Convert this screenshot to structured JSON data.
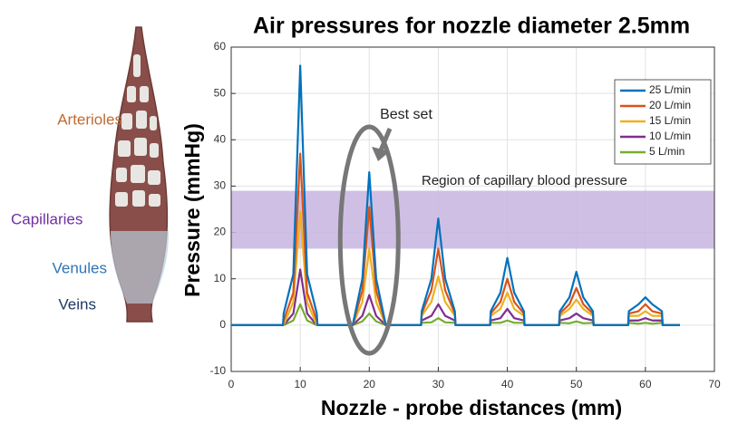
{
  "chart_data": {
    "type": "line",
    "title": "Air pressures for nozzle diameter 2.5mm",
    "xlabel": "Nozzle - probe distances (mm)",
    "ylabel": "Pressure (mmHg)",
    "x": [
      0,
      7.5,
      7.6,
      9,
      10,
      11,
      12.4,
      12.5,
      17.5,
      17.6,
      19,
      20,
      21,
      22.4,
      22.5,
      27.5,
      27.6,
      29,
      30,
      31,
      32.4,
      32.5,
      37.5,
      37.6,
      39,
      40,
      41,
      42.4,
      42.5,
      47.5,
      47.6,
      49,
      50,
      51,
      52.4,
      52.5,
      57.5,
      57.6,
      59,
      60,
      61,
      62.4,
      62.5,
      65
    ],
    "series": [
      {
        "name": "25 L/min",
        "color": "#0072bd",
        "values": [
          0,
          0,
          2.5,
          11,
          56,
          11,
          2.5,
          0,
          0,
          0,
          10,
          33,
          10,
          0,
          0,
          0,
          3,
          10,
          23,
          10,
          3,
          0,
          0,
          3,
          7,
          14.5,
          7,
          3,
          0,
          0,
          3,
          6,
          11.5,
          6,
          3,
          0,
          0,
          3,
          4.5,
          6,
          4.5,
          3,
          0,
          0
        ]
      },
      {
        "name": "20 L/min",
        "color": "#d95319",
        "values": [
          0,
          0,
          1,
          7,
          37,
          7,
          1,
          0,
          0,
          0,
          7.5,
          25.5,
          7.5,
          0,
          0,
          0,
          2.5,
          7.5,
          16.5,
          7.5,
          2.5,
          0,
          0,
          2.5,
          5,
          10,
          5,
          2.5,
          0,
          0,
          2.5,
          4.5,
          8,
          4.5,
          2.5,
          0,
          0,
          2.5,
          3,
          4.5,
          3,
          2.5,
          0,
          0
        ]
      },
      {
        "name": "15 L/min",
        "color": "#edb120",
        "values": [
          0,
          0,
          0,
          5,
          24.5,
          5,
          0,
          0,
          0,
          0,
          5,
          16.5,
          5,
          0,
          0,
          0,
          2,
          5,
          10.5,
          5,
          2,
          0,
          0,
          2,
          3.5,
          7,
          3.5,
          2,
          0,
          0,
          2,
          3.5,
          5.5,
          3.5,
          2,
          0,
          0,
          2,
          2,
          3,
          2,
          2,
          0,
          0
        ]
      },
      {
        "name": "10 L/min",
        "color": "#7e2f8e",
        "values": [
          0,
          0,
          0,
          2.5,
          12,
          2.5,
          0,
          0,
          0,
          0,
          2,
          6.5,
          2,
          0,
          0,
          0,
          1,
          2,
          4.5,
          2,
          1,
          0,
          0,
          1,
          1.5,
          3.5,
          1.5,
          1,
          0,
          0,
          1,
          1.5,
          2.5,
          1.5,
          1,
          0,
          0,
          1,
          1,
          1.5,
          1,
          1,
          0,
          0
        ]
      },
      {
        "name": "5 L/min",
        "color": "#77ac30",
        "values": [
          0,
          0,
          0,
          1,
          4.5,
          1,
          0,
          0,
          0,
          0,
          0.8,
          2.5,
          0.8,
          0,
          0,
          0,
          0.5,
          0.6,
          1.5,
          0.6,
          0.5,
          0,
          0,
          0.5,
          0.5,
          1,
          0.5,
          0.5,
          0,
          0,
          0.5,
          0.4,
          0.8,
          0.4,
          0.5,
          0,
          0,
          0.5,
          0.3,
          0.5,
          0.3,
          0.5,
          0,
          0
        ]
      }
    ],
    "xlim": [
      0,
      70
    ],
    "xticks": [
      0,
      10,
      20,
      30,
      40,
      50,
      60,
      70
    ],
    "ylim": [
      -10,
      60
    ],
    "yticks": [
      -10,
      0,
      10,
      20,
      30,
      40,
      50,
      60
    ],
    "grid": true,
    "legend": "upper right",
    "band": [
      16.5,
      29
    ],
    "band_color": "#c8b4e0",
    "band_label": "Region of capillary blood pressure",
    "highlight_label": "Best set",
    "illustration_labels": [
      "Arterioles",
      "Capillaries",
      "Venules",
      "Veins"
    ]
  }
}
